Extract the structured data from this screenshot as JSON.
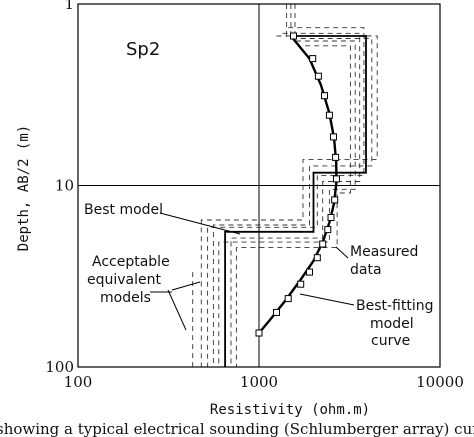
{
  "chart_data": {
    "type": "line",
    "title": "",
    "panel_label": "Sp2",
    "xlabel": "Resistivity (ohm.m)",
    "ylabel": "Depth, AB/2 (m)",
    "x_scale": "log",
    "y_scale": "log",
    "y_inverted": true,
    "xlim": [
      100,
      10000
    ],
    "ylim": [
      1,
      100
    ],
    "x_ticks": [
      "100",
      "1000",
      "10000"
    ],
    "y_ticks": [
      "1",
      "10",
      "100"
    ],
    "grid": true,
    "caption": "showing a typical electrical sounding (Schlumberger array) curv",
    "annotations": {
      "best_model": "Best model",
      "acceptable": [
        "Acceptable",
        "equivalent",
        "models"
      ],
      "measured": [
        "Measured",
        "data"
      ],
      "best_fit": [
        "Best-fitting",
        "model",
        "curve"
      ]
    },
    "series": [
      {
        "name": "Measured data",
        "marker": "square",
        "points": [
          [
            1550,
            1.5
          ],
          [
            1980,
            2.0
          ],
          [
            2130,
            2.5
          ],
          [
            2300,
            3.2
          ],
          [
            2450,
            4.1
          ],
          [
            2580,
            5.4
          ],
          [
            2650,
            7.0
          ],
          [
            2680,
            9.2
          ],
          [
            2620,
            12.0
          ],
          [
            2500,
            15.0
          ],
          [
            2400,
            17.5
          ],
          [
            2250,
            21.0
          ],
          [
            2100,
            25.0
          ],
          [
            1900,
            30.0
          ],
          [
            1700,
            35.0
          ],
          [
            1450,
            42.0
          ],
          [
            1250,
            50.0
          ],
          [
            1000,
            65.0
          ]
        ]
      },
      {
        "name": "Best-fitting model curve",
        "style": "line",
        "points": [
          [
            1500,
            1.5
          ],
          [
            1900,
            2.0
          ],
          [
            2200,
            2.8
          ],
          [
            2450,
            4.0
          ],
          [
            2600,
            5.5
          ],
          [
            2670,
            7.5
          ],
          [
            2680,
            9.5
          ],
          [
            2600,
            12.5
          ],
          [
            2450,
            16.0
          ],
          [
            2250,
            20.5
          ],
          [
            2000,
            26.0
          ],
          [
            1700,
            33.0
          ],
          [
            1400,
            43.0
          ],
          [
            1150,
            55.0
          ],
          [
            1000,
            65.0
          ]
        ]
      },
      {
        "name": "Best model",
        "style": "step",
        "points": [
          [
            1500,
            1.5
          ],
          [
            3900,
            1.5
          ],
          [
            3900,
            8.5
          ],
          [
            2000,
            8.5
          ],
          [
            2000,
            18.0
          ],
          [
            650,
            18.0
          ],
          [
            650,
            100
          ]
        ]
      }
    ],
    "equivalent_models": [
      [
        [
          1700,
          1.55
        ],
        [
          4200,
          1.55
        ],
        [
          4200,
          7.8
        ],
        [
          1900,
          7.8
        ],
        [
          1900,
          16.5
        ],
        [
          560,
          16.5
        ],
        [
          560,
          100
        ]
      ],
      [
        [
          1350,
          1.45
        ],
        [
          3600,
          1.45
        ],
        [
          3600,
          9.5
        ],
        [
          2250,
          9.5
        ],
        [
          2250,
          19.5
        ],
        [
          700,
          19.5
        ],
        [
          700,
          100
        ]
      ],
      [
        [
          1600,
          1.6
        ],
        [
          3400,
          1.6
        ],
        [
          3400,
          10.5
        ],
        [
          2450,
          10.5
        ],
        [
          2450,
          20.5
        ],
        [
          600,
          20.5
        ],
        [
          600,
          100
        ]
      ],
      [
        [
          1250,
          1.5
        ],
        [
          4500,
          1.5
        ],
        [
          4500,
          7.2
        ],
        [
          1750,
          7.2
        ],
        [
          1750,
          15.5
        ],
        [
          480,
          15.5
        ],
        [
          480,
          100
        ]
      ],
      [
        [
          1450,
          1.35
        ],
        [
          3800,
          1.35
        ],
        [
          3800,
          8.8
        ],
        [
          2100,
          8.8
        ],
        [
          2100,
          17.0
        ],
        [
          520,
          17.0
        ],
        [
          520,
          100
        ]
      ],
      [
        [
          1800,
          1.7
        ],
        [
          3200,
          1.7
        ],
        [
          3200,
          11.0
        ],
        [
          2700,
          11.0
        ],
        [
          2700,
          22.0
        ],
        [
          750,
          22.0
        ],
        [
          750,
          100
        ]
      ],
      [
        [
          1500,
          1.0
        ],
        [
          1500,
          1.5
        ]
      ],
      [
        [
          1420,
          1.0
        ],
        [
          1420,
          1.5
        ]
      ],
      [
        [
          1580,
          1.0
        ],
        [
          1580,
          1.5
        ]
      ],
      [
        [
          430,
          30.0
        ],
        [
          430,
          100
        ]
      ]
    ]
  }
}
